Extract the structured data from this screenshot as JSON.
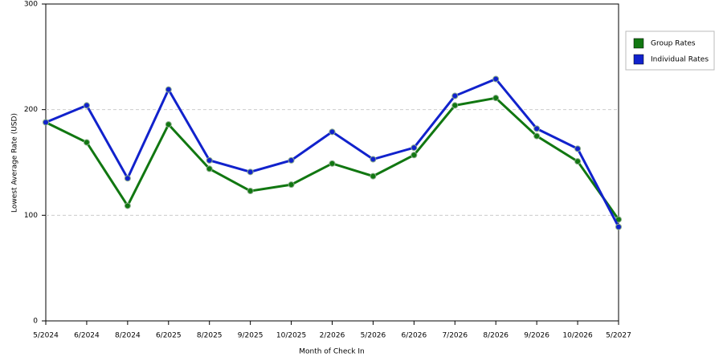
{
  "chart_data": {
    "type": "line",
    "x_label": "Month of Check In",
    "y_label": "Lowest Average Rate (USD)",
    "categories": [
      "5/2024",
      "6/2024",
      "8/2024",
      "6/2025",
      "8/2025",
      "9/2025",
      "10/2025",
      "2/2026",
      "5/2026",
      "6/2026",
      "7/2026",
      "8/2026",
      "9/2026",
      "10/2026",
      "5/2027"
    ],
    "series": [
      {
        "name": "Group Rates",
        "color": "#117711",
        "values": [
          188,
          169,
          109,
          186,
          144,
          123,
          129,
          149,
          137,
          157,
          204,
          211,
          175,
          151,
          96
        ]
      },
      {
        "name": "Individual Rates",
        "color": "#1122cc",
        "values": [
          188,
          204,
          135,
          219,
          152,
          141,
          152,
          179,
          153,
          164,
          213,
          229,
          182,
          163,
          89
        ]
      }
    ],
    "ylim": [
      0,
      300
    ],
    "yticks": [
      0,
      100,
      200,
      300
    ],
    "grid": true,
    "legend": "right"
  }
}
